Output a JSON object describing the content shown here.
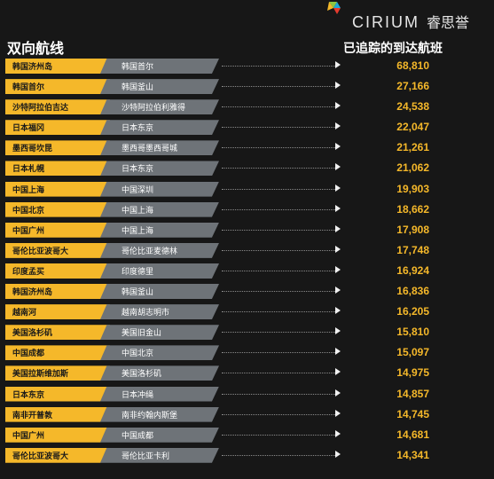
{
  "brand": {
    "name": "CIRIUM",
    "name_cn": "睿思誉",
    "colors": [
      "#8fc642",
      "#e63b2e",
      "#f5b82a",
      "#1fa7d8"
    ]
  },
  "header": {
    "left_title": "双向航线",
    "right_title": "已追踪的到达航班"
  },
  "colors": {
    "origin_bar": "#f5b82a",
    "dest_bar": "#6e7378",
    "number": "#f5b82a",
    "background": "#171717"
  },
  "routes": [
    {
      "origin": "韩国济州岛",
      "destination": "韩国首尔",
      "flights": "68,810"
    },
    {
      "origin": "韩国首尔",
      "destination": "韩国釜山",
      "flights": "27,166"
    },
    {
      "origin": "沙特阿拉伯吉达",
      "destination": "沙特阿拉伯利雅得",
      "flights": "24,538"
    },
    {
      "origin": "日本福冈",
      "destination": "日本东京",
      "flights": "22,047"
    },
    {
      "origin": "墨西哥坎昆",
      "destination": "墨西哥墨西哥城",
      "flights": "21,261"
    },
    {
      "origin": "日本札幌",
      "destination": "日本东京",
      "flights": "21,062"
    },
    {
      "origin": "中国上海",
      "destination": "中国深圳",
      "flights": "19,903"
    },
    {
      "origin": "中国北京",
      "destination": "中国上海",
      "flights": "18,662"
    },
    {
      "origin": "中国广州",
      "destination": "中国上海",
      "flights": "17,908"
    },
    {
      "origin": "哥伦比亚波哥大",
      "destination": "哥伦比亚麦德林",
      "flights": "17,748"
    },
    {
      "origin": "印度孟买",
      "destination": "印度德里",
      "flights": "16,924"
    },
    {
      "origin": "韩国济州岛",
      "destination": "韩国釜山",
      "flights": "16,836"
    },
    {
      "origin": "越南河",
      "destination": "越南胡志明市",
      "flights": "16,205"
    },
    {
      "origin": "美国洛杉矶",
      "destination": "美国旧金山",
      "flights": "15,810"
    },
    {
      "origin": "中国成都",
      "destination": "中国北京",
      "flights": "15,097"
    },
    {
      "origin": "美国拉斯维加斯",
      "destination": "美国洛杉矶",
      "flights": "14,975"
    },
    {
      "origin": "日本东京",
      "destination": "日本冲绳",
      "flights": "14,857"
    },
    {
      "origin": "南非开普敦",
      "destination": "南非约翰内斯堡",
      "flights": "14,745"
    },
    {
      "origin": "中国广州",
      "destination": "中国成都",
      "flights": "14,681"
    },
    {
      "origin": "哥伦比亚波哥大",
      "destination": "哥伦比亚卡利",
      "flights": "14,341"
    }
  ]
}
